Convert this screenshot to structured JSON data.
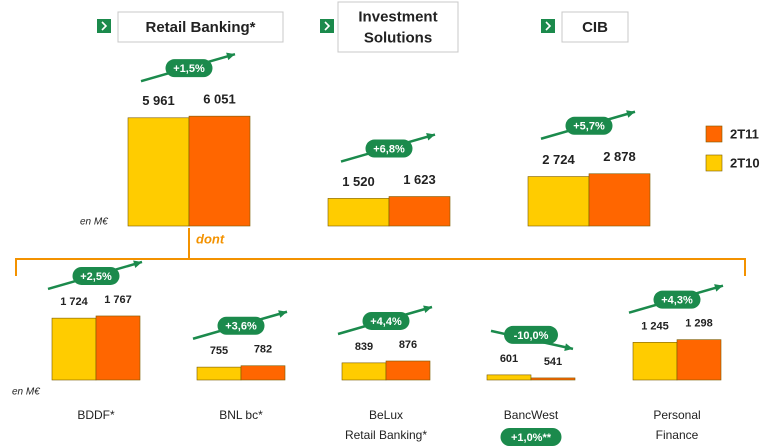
{
  "chart_data": [
    {
      "type": "bar",
      "categories": [
        [
          "Retail Banking*"
        ],
        [
          "Investment",
          "Solutions"
        ],
        [
          "CIB"
        ]
      ],
      "series": [
        {
          "name": "2T10",
          "color": "#ffcc00",
          "values": [
            5961,
            1520,
            2724
          ],
          "value_labels": [
            "5 961",
            "1 520",
            "2 724"
          ]
        },
        {
          "name": "2T11",
          "color": "#ff6600",
          "values": [
            6051,
            1623,
            2878
          ],
          "value_labels": [
            "6 051",
            "1 623",
            "2 878"
          ]
        }
      ],
      "growth_labels": [
        "+1,5%",
        "+6,8%",
        "+5,7%"
      ],
      "unit_label": "en M€",
      "ylim": [
        0,
        6500
      ],
      "legend": "right"
    },
    {
      "type": "bar",
      "title": "dont",
      "categories": [
        [
          "BDDF*"
        ],
        [
          "BNL bc*"
        ],
        [
          "BeLux",
          "Retail Banking*"
        ],
        [
          "BancWest"
        ],
        [
          "Personal",
          "Finance"
        ]
      ],
      "series": [
        {
          "name": "2T10",
          "color": "#ffcc00",
          "values": [
            1724,
            755,
            839,
            601,
            1245
          ],
          "value_labels": [
            "1 724",
            "755",
            "839",
            "601",
            "1 245"
          ]
        },
        {
          "name": "2T11",
          "color": "#ff6600",
          "values": [
            1767,
            782,
            876,
            541,
            1298
          ],
          "value_labels": [
            "1 767",
            "782",
            "876",
            "541",
            "1 298"
          ]
        }
      ],
      "growth_labels": [
        "+2,5%",
        "+3,6%",
        "+4,4%",
        "-10,0%",
        "+4,3%"
      ],
      "annotation": "+1,0%**",
      "unit_label": "en M€",
      "ylim": [
        500,
        1800
      ]
    }
  ]
}
